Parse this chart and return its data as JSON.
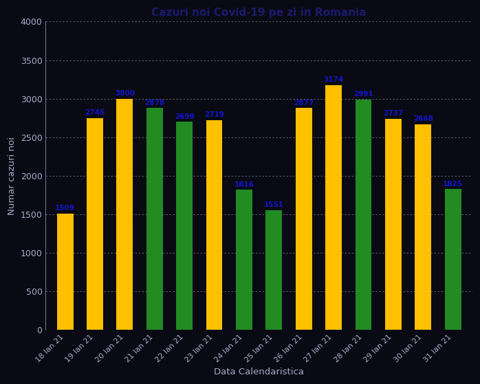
{
  "title": "Cazuri noi Covid-19 pe zi in Romania",
  "xlabel": "Data Calendaristica",
  "ylabel": "Numar cazuri noi",
  "categories": [
    "18 Ian 21",
    "19 Ian 21",
    "20 Ian 21",
    "21 Ian 21",
    "22 Ian 21",
    "23 Ian 21",
    "24 Ian 21",
    "25 Ian 21",
    "26 Ian 21",
    "27 Ian 21",
    "28 Ian 21",
    "29 Ian 21",
    "30 Ian 21",
    "31 Ian 21"
  ],
  "values": [
    1509,
    2745,
    3000,
    2878,
    2699,
    2719,
    1816,
    1551,
    2877,
    3174,
    2991,
    2737,
    2668,
    1825
  ],
  "colors": [
    "#FFC000",
    "#FFC000",
    "#FFC000",
    "#228B22",
    "#228B22",
    "#FFC000",
    "#228B22",
    "#228B22",
    "#FFC000",
    "#FFC000",
    "#228B22",
    "#FFC000",
    "#FFC000",
    "#228B22"
  ],
  "ylim": [
    0,
    4000
  ],
  "yticks": [
    0,
    500,
    1000,
    1500,
    2000,
    2500,
    3000,
    3500,
    4000
  ],
  "background_color": "#0a0a14",
  "text_color": "#1414CC",
  "title_color": "#1a1a6e",
  "tick_color": "#aaaacc",
  "grid_color": "#aaaacc",
  "bar_width": 0.55
}
